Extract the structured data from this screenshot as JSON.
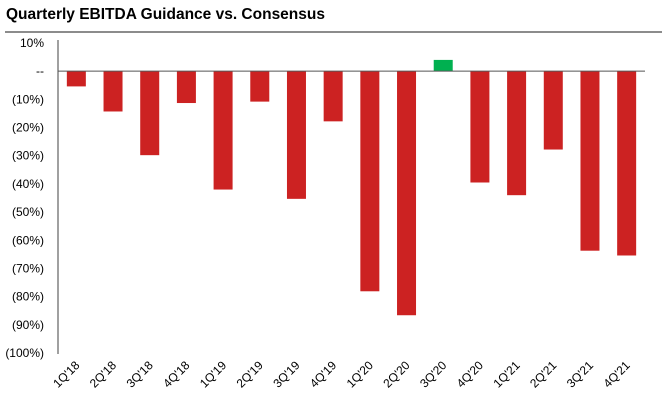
{
  "chart_data": {
    "type": "bar",
    "title": "Quarterly EBITDA Guidance vs. Consensus",
    "xlabel": "",
    "ylabel": "",
    "categories": [
      "1Q'18",
      "2Q'18",
      "3Q'18",
      "4Q'18",
      "1Q'19",
      "2Q'19",
      "3Q'19",
      "4Q'19",
      "1Q'20",
      "2Q'20",
      "3Q'20",
      "4Q'20",
      "1Q'21",
      "2Q'21",
      "3Q'21",
      "4Q'21"
    ],
    "values": [
      -5.4,
      -14.3,
      -29.8,
      -11.3,
      -42.0,
      -10.8,
      -45.3,
      -17.8,
      -78.1,
      -86.6,
      4.0,
      -39.5,
      -44.0,
      -27.8,
      -63.7,
      -65.4
    ],
    "unit": "%",
    "ylim": [
      -100,
      10
    ],
    "yticks": [
      10,
      0,
      -10,
      -20,
      -30,
      -40,
      -50,
      -60,
      -70,
      -80,
      -90,
      -100
    ],
    "ytick_labels": [
      "10%",
      "--",
      "(10%)",
      "(20%)",
      "(30%)",
      "(40%)",
      "(50%)",
      "(60%)",
      "(70%)",
      "(80%)",
      "(90%)",
      "(100%)"
    ],
    "grid": false,
    "legend": "none",
    "colors": {
      "negative": "#cc2222",
      "positive": "#00b050",
      "axis": "#808080"
    }
  }
}
